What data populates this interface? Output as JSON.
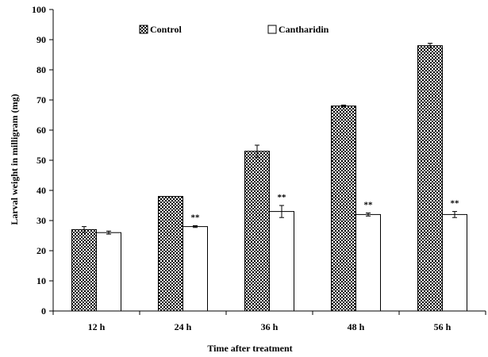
{
  "chart_data": {
    "type": "bar",
    "title": "",
    "xlabel": "Time after treatment",
    "ylabel": "Larval weight in milligram (mg)",
    "categories": [
      "12 h",
      "24 h",
      "36 h",
      "48 h",
      "56 h"
    ],
    "ylim": [
      0,
      100
    ],
    "yticks": [
      0,
      10,
      20,
      30,
      40,
      50,
      60,
      70,
      80,
      90,
      100
    ],
    "grid": false,
    "legend_position": "top",
    "series": [
      {
        "name": "Control",
        "values": [
          27,
          38,
          53,
          68,
          88
        ],
        "errors": [
          1,
          0,
          2,
          0.3,
          0.8
        ],
        "pattern": "checkered",
        "color": "#000000"
      },
      {
        "name": "Cantharidin",
        "values": [
          26,
          28,
          33,
          32,
          32
        ],
        "errors": [
          0.5,
          0.3,
          2,
          0.5,
          1
        ],
        "pattern": "none",
        "color": "#ffffff"
      }
    ],
    "annotations": [
      "",
      "**",
      "**",
      "**",
      "**"
    ]
  }
}
